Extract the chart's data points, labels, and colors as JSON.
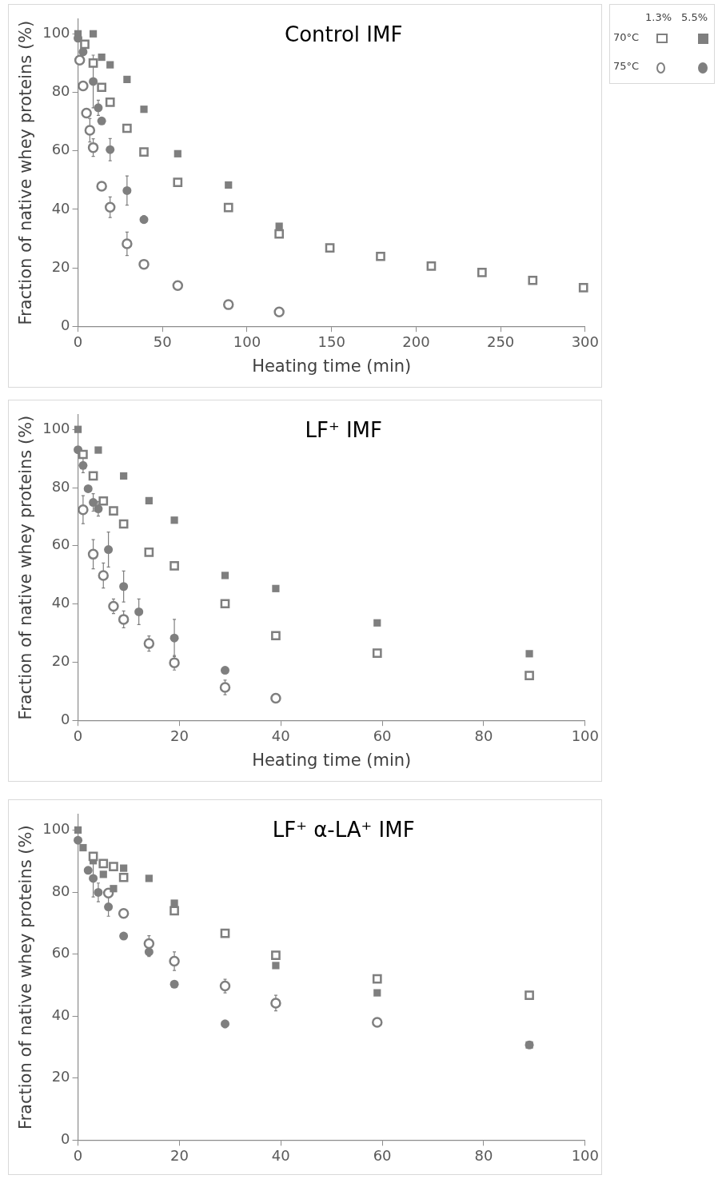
{
  "chart_data": [
    {
      "type": "scatter",
      "title": "Control IMF",
      "xlabel": "Heating time (min)",
      "ylabel": "Fraction of native whey proteins (%)",
      "xlim": [
        0,
        300
      ],
      "xticks": [
        0,
        50,
        100,
        150,
        200,
        250,
        300
      ],
      "ylim": [
        0,
        105
      ],
      "yticks": [
        0,
        20,
        40,
        60,
        80,
        100
      ],
      "annotations": [
        "1.3%",
        "5.5%",
        "70°C",
        "75°C"
      ],
      "series": [
        {
          "color": "#ffffff",
          "marker": "square",
          "x": [
            4,
            9,
            14,
            19,
            29,
            39,
            59,
            89,
            119,
            149,
            179,
            209,
            239,
            269,
            299
          ],
          "values": [
            96.4,
            90,
            81.7,
            76.6,
            67.7,
            59.6,
            49.2,
            40.6,
            31.6,
            26.8,
            23.9,
            20.6,
            18.4,
            15.7,
            13.2
          ]
        },
        {
          "color": "#7f7f7f",
          "marker": "square",
          "x": [
            0,
            9,
            14,
            19,
            29,
            39,
            59,
            89,
            119
          ],
          "values": [
            100,
            100,
            92,
            89.4,
            84.4,
            74.2,
            59,
            48.3,
            34.2
          ]
        },
        {
          "color": "#ffffff",
          "marker": "circle",
          "x": [
            1,
            3,
            5,
            7,
            9,
            14,
            19,
            29,
            39,
            59,
            89,
            119
          ],
          "values": [
            91,
            82.2,
            72.9,
            67,
            61.1,
            47.9,
            40.7,
            28.2,
            21.2,
            13.9,
            7.4,
            4.9
          ],
          "errors": [
            null,
            null,
            null,
            4,
            3,
            null,
            3.5,
            4,
            null,
            1,
            null,
            null
          ]
        },
        {
          "color": "#7f7f7f",
          "marker": "circle",
          "x": [
            0,
            3,
            9,
            12,
            14,
            19,
            29,
            39
          ],
          "values": [
            98.5,
            93.8,
            83.7,
            74.7,
            70.2,
            60.4,
            46.4,
            36.5
          ],
          "errors": [
            null,
            null,
            9,
            2.6,
            null,
            3.8,
            5,
            1.3
          ]
        }
      ]
    },
    {
      "type": "scatter",
      "title": "LF⁺ IMF",
      "xlabel": "Heating time (min)",
      "ylabel": "Fraction of native whey proteins (%)",
      "xlim": [
        0,
        100
      ],
      "xticks": [
        0,
        20,
        40,
        60,
        80,
        100
      ],
      "ylim": [
        0,
        105
      ],
      "yticks": [
        0,
        20,
        40,
        60,
        80,
        100
      ],
      "series": [
        {
          "color": "#ffffff",
          "marker": "square",
          "x": [
            1,
            3,
            5,
            7,
            9,
            14,
            19,
            29,
            39,
            59,
            89
          ],
          "values": [
            91.4,
            84,
            75.4,
            72,
            67.5,
            57.8,
            53.1,
            40.1,
            29.1,
            23.1,
            15.4
          ]
        },
        {
          "color": "#7f7f7f",
          "marker": "square",
          "x": [
            0,
            4,
            9,
            14,
            19,
            29,
            39,
            59,
            89
          ],
          "values": [
            100,
            92.9,
            84,
            75.5,
            68.8,
            49.8,
            45.3,
            33.5,
            22.9
          ]
        },
        {
          "color": "#ffffff",
          "marker": "circle",
          "x": [
            1,
            3,
            5,
            7,
            9,
            14,
            19,
            29,
            39
          ],
          "values": [
            72.4,
            57.1,
            49.8,
            39.2,
            34.7,
            26.4,
            19.8,
            11.3,
            7.6
          ],
          "errors": [
            4.8,
            5,
            4.3,
            2.5,
            2.9,
            2.6,
            2.5,
            2.5,
            null
          ]
        },
        {
          "color": "#7f7f7f",
          "marker": "circle",
          "x": [
            0,
            1,
            2,
            3,
            4,
            6,
            9,
            12,
            19,
            29
          ],
          "values": [
            93,
            87.6,
            79.6,
            74.9,
            72.7,
            58.7,
            46,
            37.3,
            28.3,
            17.2
          ],
          "errors": [
            null,
            2.5,
            null,
            3,
            2.5,
            6,
            5.3,
            4.4,
            6.4,
            null
          ]
        }
      ]
    },
    {
      "type": "scatter",
      "title": "LF⁺ α-LA⁺ IMF",
      "ylabel": "Fraction of native whey proteins (%)",
      "xlim": [
        0,
        100
      ],
      "xticks": [
        0,
        20,
        40,
        60,
        80,
        100
      ],
      "ylim": [
        0,
        105
      ],
      "yticks": [
        0,
        20,
        40,
        60,
        80,
        100
      ],
      "series": [
        {
          "color": "#ffffff",
          "marker": "square",
          "x": [
            3,
            5,
            7,
            9,
            19,
            29,
            39,
            59,
            89
          ],
          "values": [
            91.5,
            89.2,
            88.2,
            84.7,
            74,
            66.7,
            59.6,
            52,
            46.7
          ]
        },
        {
          "color": "#7f7f7f",
          "marker": "square",
          "x": [
            0,
            1,
            3,
            5,
            7,
            9,
            14,
            19,
            39,
            59,
            89
          ],
          "values": [
            100,
            94.3,
            90.1,
            85.7,
            81.1,
            87.7,
            84.4,
            76.4,
            56.3,
            47.5,
            30.7
          ]
        },
        {
          "color": "#ffffff",
          "marker": "circle",
          "x": [
            6,
            9,
            14,
            19,
            29,
            39,
            59
          ],
          "values": [
            79.7,
            73.1,
            63.4,
            57.7,
            49.7,
            44.2,
            38
          ],
          "errors": [
            null,
            null,
            2.5,
            3,
            2.2,
            2.5,
            null
          ]
        },
        {
          "color": "#7f7f7f",
          "marker": "circle",
          "x": [
            0,
            2,
            3,
            4,
            6,
            9,
            14,
            19,
            29,
            89
          ],
          "values": [
            96.7,
            87,
            84.4,
            79.9,
            75.2,
            65.8,
            60.7,
            50.3,
            37.5,
            30.7
          ],
          "errors": [
            null,
            null,
            6,
            3,
            3,
            1,
            1.5,
            null,
            1.2,
            null
          ]
        }
      ]
    }
  ]
}
